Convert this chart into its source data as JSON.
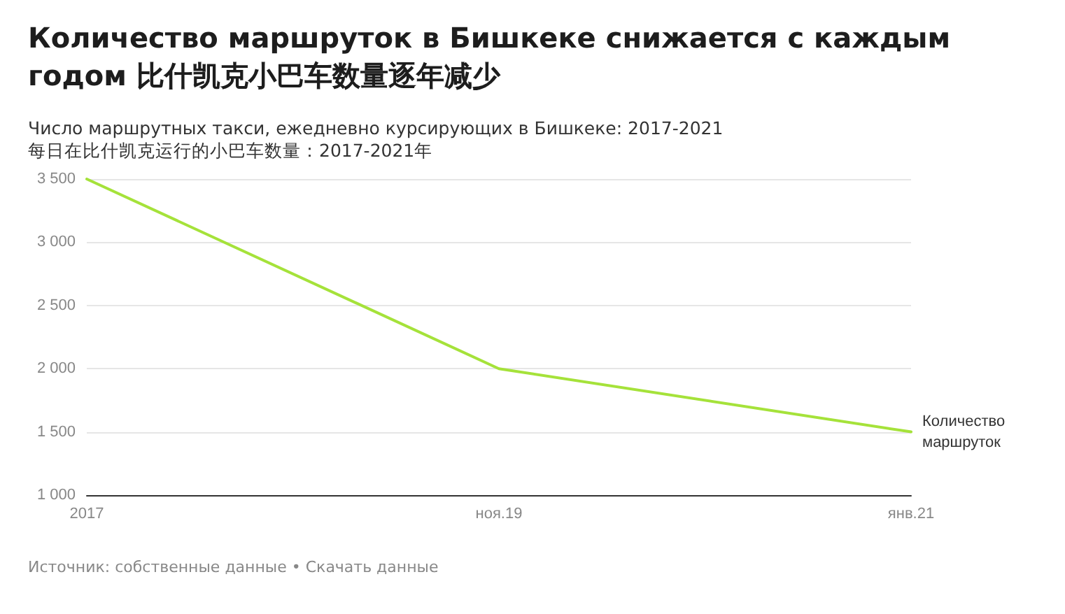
{
  "chart_data": {
    "type": "line",
    "title": "Количество маршруток в Бишкеке снижается с каждым годом 比什凯克小巴车数量逐年减少",
    "subtitle": "Число маршрутных такси, ежедневно курсирующих в Бишкеке: 2017-2021\n每日在比什凯克运行的小巴车数量：2017-2021年",
    "categories": [
      "2017",
      "ноя.19",
      "янв.21"
    ],
    "series": [
      {
        "name": "Количество маршруток",
        "color": "#a5e23a",
        "values": [
          3500,
          2000,
          1500
        ]
      }
    ],
    "ylim": [
      1000,
      3500
    ],
    "yticks": [
      {
        "value": 1000,
        "label": "1 000"
      },
      {
        "value": 1500,
        "label": "1 500"
      },
      {
        "value": 2000,
        "label": "2 000"
      },
      {
        "value": 2500,
        "label": "2 500"
      },
      {
        "value": 3000,
        "label": "3 000"
      },
      {
        "value": 3500,
        "label": "3 500"
      }
    ],
    "grid": "y",
    "marker": "none",
    "line_style": "solid",
    "legend": false,
    "annotations": [
      "Источник: собственные данные • Скачать данные"
    ]
  }
}
